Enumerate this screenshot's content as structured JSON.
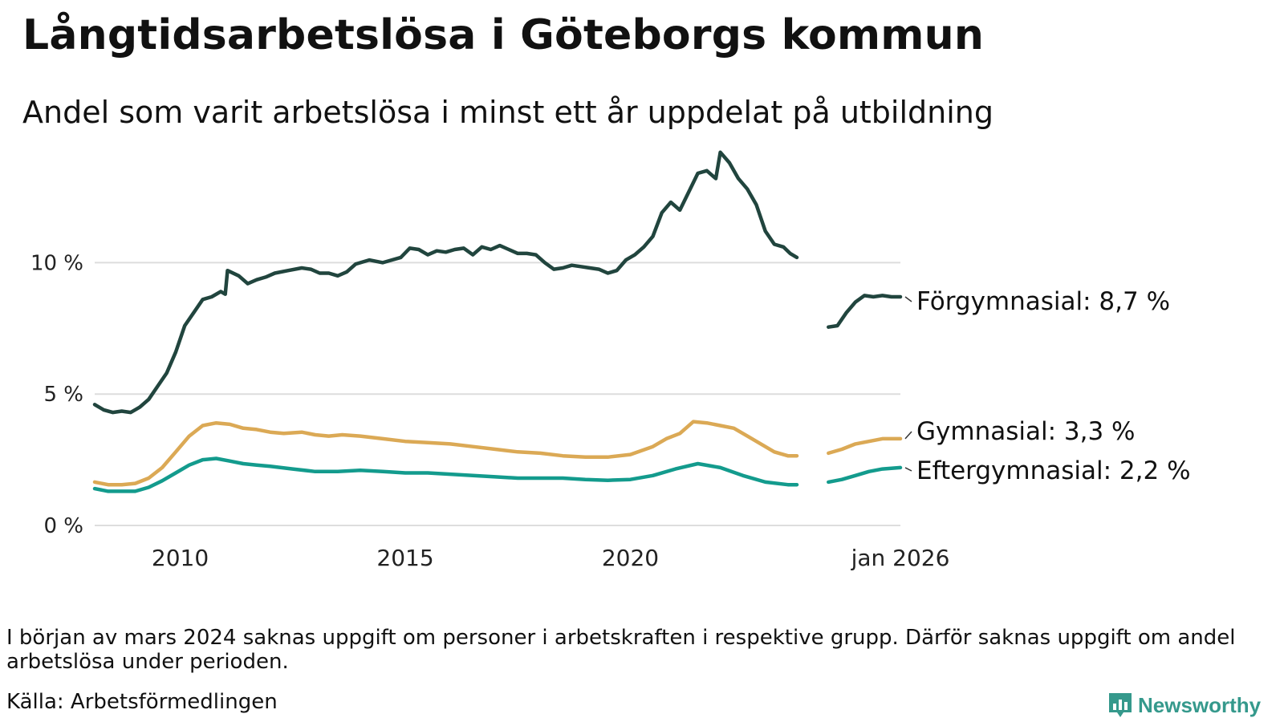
{
  "header": {
    "title": "Långtidsarbetslösa i Göteborgs kommun",
    "subtitle": "Andel som varit arbetslösa i minst ett år uppdelat på utbildning"
  },
  "footer": {
    "note": "I början av mars 2024 saknas uppgift om personer i arbetskraften i respektive grupp. Därför saknas uppgift om andel arbetslösa under perioden.",
    "source": "Källa: Arbetsförmedlingen",
    "brand": "Newsworthy",
    "brand_icon": "newsworthy-logo-icon"
  },
  "chart_data": {
    "type": "line",
    "title": "Långtidsarbetslösa i Göteborgs kommun",
    "subtitle": "Andel som varit arbetslösa i minst ett år uppdelat på utbildning",
    "xlabel": "",
    "ylabel": "",
    "x_unit": "year (decimal)",
    "xlim": [
      2008.1,
      2026.0
    ],
    "ylim": [
      0,
      14.5
    ],
    "x_ticks": [
      {
        "value": 2010,
        "label": "2010"
      },
      {
        "value": 2015,
        "label": "2015"
      },
      {
        "value": 2020,
        "label": "2020"
      },
      {
        "value": 2026.0,
        "label": "jan 2026"
      }
    ],
    "y_ticks": [
      {
        "value": 0,
        "label": "0 %"
      },
      {
        "value": 5,
        "label": "5 %"
      },
      {
        "value": 10,
        "label": "10 %"
      }
    ],
    "grid": "horizontal",
    "gap": {
      "from": 2023.7,
      "to": 2024.4
    },
    "series": [
      {
        "name": "Förgymnasial",
        "label": "Förgymnasial: 8,7 %",
        "color": "#21453e",
        "points": [
          [
            2008.1,
            4.6
          ],
          [
            2008.3,
            4.4
          ],
          [
            2008.5,
            4.3
          ],
          [
            2008.7,
            4.35
          ],
          [
            2008.9,
            4.3
          ],
          [
            2009.1,
            4.5
          ],
          [
            2009.3,
            4.8
          ],
          [
            2009.5,
            5.3
          ],
          [
            2009.7,
            5.8
          ],
          [
            2009.9,
            6.6
          ],
          [
            2010.1,
            7.6
          ],
          [
            2010.3,
            8.1
          ],
          [
            2010.5,
            8.6
          ],
          [
            2010.7,
            8.7
          ],
          [
            2010.9,
            8.9
          ],
          [
            2011.0,
            8.8
          ],
          [
            2011.05,
            9.7
          ],
          [
            2011.3,
            9.5
          ],
          [
            2011.5,
            9.2
          ],
          [
            2011.7,
            9.35
          ],
          [
            2011.9,
            9.45
          ],
          [
            2012.1,
            9.6
          ],
          [
            2012.4,
            9.7
          ],
          [
            2012.7,
            9.8
          ],
          [
            2012.9,
            9.75
          ],
          [
            2013.1,
            9.6
          ],
          [
            2013.3,
            9.6
          ],
          [
            2013.5,
            9.5
          ],
          [
            2013.7,
            9.65
          ],
          [
            2013.9,
            9.95
          ],
          [
            2014.2,
            10.1
          ],
          [
            2014.5,
            10.0
          ],
          [
            2014.7,
            10.1
          ],
          [
            2014.9,
            10.2
          ],
          [
            2015.1,
            10.55
          ],
          [
            2015.3,
            10.5
          ],
          [
            2015.5,
            10.3
          ],
          [
            2015.7,
            10.45
          ],
          [
            2015.9,
            10.4
          ],
          [
            2016.1,
            10.5
          ],
          [
            2016.3,
            10.55
          ],
          [
            2016.5,
            10.3
          ],
          [
            2016.7,
            10.6
          ],
          [
            2016.9,
            10.5
          ],
          [
            2017.1,
            10.65
          ],
          [
            2017.3,
            10.5
          ],
          [
            2017.5,
            10.35
          ],
          [
            2017.7,
            10.35
          ],
          [
            2017.9,
            10.3
          ],
          [
            2018.1,
            10.0
          ],
          [
            2018.3,
            9.75
          ],
          [
            2018.5,
            9.8
          ],
          [
            2018.7,
            9.9
          ],
          [
            2018.9,
            9.85
          ],
          [
            2019.1,
            9.8
          ],
          [
            2019.3,
            9.75
          ],
          [
            2019.5,
            9.6
          ],
          [
            2019.7,
            9.7
          ],
          [
            2019.9,
            10.1
          ],
          [
            2020.1,
            10.3
          ],
          [
            2020.3,
            10.6
          ],
          [
            2020.5,
            11.0
          ],
          [
            2020.7,
            11.9
          ],
          [
            2020.9,
            12.3
          ],
          [
            2021.1,
            12.0
          ],
          [
            2021.3,
            12.7
          ],
          [
            2021.5,
            13.4
          ],
          [
            2021.7,
            13.5
          ],
          [
            2021.9,
            13.2
          ],
          [
            2022.0,
            14.2
          ],
          [
            2022.2,
            13.8
          ],
          [
            2022.4,
            13.2
          ],
          [
            2022.6,
            12.8
          ],
          [
            2022.8,
            12.2
          ],
          [
            2023.0,
            11.2
          ],
          [
            2023.2,
            10.7
          ],
          [
            2023.4,
            10.6
          ],
          [
            2023.55,
            10.35
          ],
          [
            2023.7,
            10.2
          ],
          [
            2024.4,
            7.55
          ],
          [
            2024.6,
            7.6
          ],
          [
            2024.8,
            8.1
          ],
          [
            2025.0,
            8.5
          ],
          [
            2025.2,
            8.75
          ],
          [
            2025.4,
            8.7
          ],
          [
            2025.6,
            8.75
          ],
          [
            2025.8,
            8.7
          ],
          [
            2026.0,
            8.7
          ]
        ]
      },
      {
        "name": "Gymnasial",
        "label": "Gymnasial: 3,3 %",
        "color": "#dba955",
        "points": [
          [
            2008.1,
            1.65
          ],
          [
            2008.4,
            1.55
          ],
          [
            2008.7,
            1.55
          ],
          [
            2009.0,
            1.6
          ],
          [
            2009.3,
            1.8
          ],
          [
            2009.6,
            2.2
          ],
          [
            2009.9,
            2.8
          ],
          [
            2010.2,
            3.4
          ],
          [
            2010.5,
            3.8
          ],
          [
            2010.8,
            3.9
          ],
          [
            2011.1,
            3.85
          ],
          [
            2011.4,
            3.7
          ],
          [
            2011.7,
            3.65
          ],
          [
            2012.0,
            3.55
          ],
          [
            2012.3,
            3.5
          ],
          [
            2012.7,
            3.55
          ],
          [
            2013.0,
            3.45
          ],
          [
            2013.3,
            3.4
          ],
          [
            2013.6,
            3.45
          ],
          [
            2014.0,
            3.4
          ],
          [
            2014.5,
            3.3
          ],
          [
            2015.0,
            3.2
          ],
          [
            2015.5,
            3.15
          ],
          [
            2016.0,
            3.1
          ],
          [
            2016.5,
            3.0
          ],
          [
            2017.0,
            2.9
          ],
          [
            2017.5,
            2.8
          ],
          [
            2018.0,
            2.75
          ],
          [
            2018.5,
            2.65
          ],
          [
            2019.0,
            2.6
          ],
          [
            2019.5,
            2.6
          ],
          [
            2020.0,
            2.7
          ],
          [
            2020.5,
            3.0
          ],
          [
            2020.8,
            3.3
          ],
          [
            2021.1,
            3.5
          ],
          [
            2021.4,
            3.95
          ],
          [
            2021.7,
            3.9
          ],
          [
            2022.0,
            3.8
          ],
          [
            2022.3,
            3.7
          ],
          [
            2022.6,
            3.4
          ],
          [
            2022.9,
            3.1
          ],
          [
            2023.2,
            2.8
          ],
          [
            2023.5,
            2.65
          ],
          [
            2023.7,
            2.65
          ],
          [
            2024.4,
            2.75
          ],
          [
            2024.7,
            2.9
          ],
          [
            2025.0,
            3.1
          ],
          [
            2025.3,
            3.2
          ],
          [
            2025.6,
            3.3
          ],
          [
            2026.0,
            3.3
          ]
        ]
      },
      {
        "name": "Eftergymnasial",
        "label": "Eftergymnasial: 2,2 %",
        "color": "#139b8d",
        "points": [
          [
            2008.1,
            1.4
          ],
          [
            2008.4,
            1.3
          ],
          [
            2008.7,
            1.3
          ],
          [
            2009.0,
            1.3
          ],
          [
            2009.3,
            1.45
          ],
          [
            2009.6,
            1.7
          ],
          [
            2009.9,
            2.0
          ],
          [
            2010.2,
            2.3
          ],
          [
            2010.5,
            2.5
          ],
          [
            2010.8,
            2.55
          ],
          [
            2011.1,
            2.45
          ],
          [
            2011.4,
            2.35
          ],
          [
            2011.7,
            2.3
          ],
          [
            2012.0,
            2.25
          ],
          [
            2012.5,
            2.15
          ],
          [
            2013.0,
            2.05
          ],
          [
            2013.5,
            2.05
          ],
          [
            2014.0,
            2.1
          ],
          [
            2014.5,
            2.05
          ],
          [
            2015.0,
            2.0
          ],
          [
            2015.5,
            2.0
          ],
          [
            2016.0,
            1.95
          ],
          [
            2016.5,
            1.9
          ],
          [
            2017.0,
            1.85
          ],
          [
            2017.5,
            1.8
          ],
          [
            2018.0,
            1.8
          ],
          [
            2018.5,
            1.8
          ],
          [
            2019.0,
            1.75
          ],
          [
            2019.5,
            1.72
          ],
          [
            2020.0,
            1.75
          ],
          [
            2020.5,
            1.9
          ],
          [
            2021.0,
            2.15
          ],
          [
            2021.5,
            2.35
          ],
          [
            2022.0,
            2.2
          ],
          [
            2022.5,
            1.9
          ],
          [
            2023.0,
            1.65
          ],
          [
            2023.5,
            1.55
          ],
          [
            2023.7,
            1.55
          ],
          [
            2024.4,
            1.65
          ],
          [
            2024.7,
            1.75
          ],
          [
            2025.0,
            1.9
          ],
          [
            2025.3,
            2.05
          ],
          [
            2025.6,
            2.15
          ],
          [
            2026.0,
            2.2
          ]
        ]
      }
    ]
  }
}
